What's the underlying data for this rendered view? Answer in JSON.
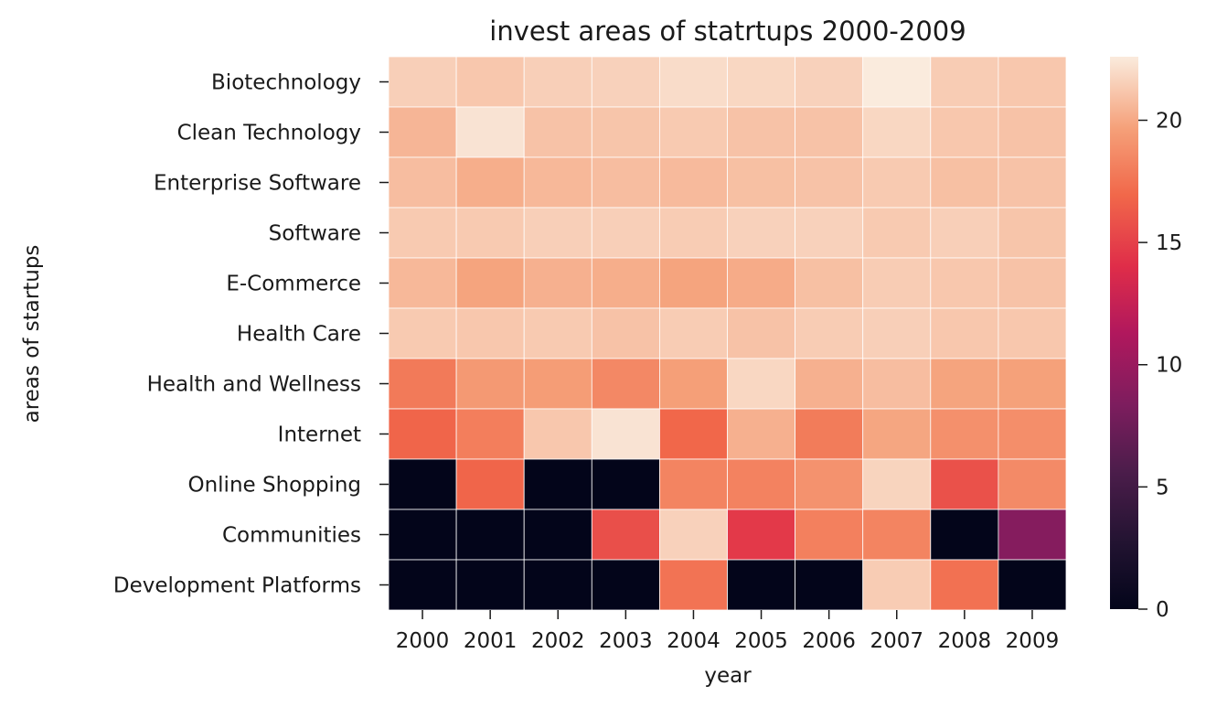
{
  "chart_data": {
    "type": "heatmap",
    "title": "invest areas of statrtups 2000-2009",
    "xlabel": "year",
    "ylabel": "areas of startups",
    "x": [
      "2000",
      "2001",
      "2002",
      "2003",
      "2004",
      "2005",
      "2006",
      "2007",
      "2008",
      "2009"
    ],
    "y": [
      "Biotechnology",
      "Clean Technology",
      "Enterprise Software",
      "Software",
      "E-Commerce",
      "Health Care",
      "Health and Wellness",
      "Internet",
      "Online Shopping",
      "Communities",
      "Development Platforms"
    ],
    "values": [
      [
        21.5,
        21.2,
        21.5,
        21.6,
        22.0,
        21.8,
        21.6,
        22.6,
        21.4,
        21.2
      ],
      [
        20.5,
        22.3,
        21.0,
        21.1,
        21.3,
        21.0,
        21.0,
        21.8,
        21.2,
        21.0
      ],
      [
        20.8,
        20.2,
        20.6,
        20.8,
        20.7,
        20.9,
        21.0,
        21.3,
        20.9,
        21.0
      ],
      [
        21.3,
        21.3,
        21.5,
        21.5,
        21.4,
        21.6,
        21.6,
        21.3,
        21.5,
        21.1
      ],
      [
        20.6,
        19.8,
        20.3,
        20.2,
        19.8,
        20.1,
        20.9,
        21.4,
        21.2,
        21.0
      ],
      [
        21.3,
        21.2,
        21.3,
        21.0,
        21.4,
        21.0,
        21.4,
        21.5,
        21.2,
        21.2
      ],
      [
        17.8,
        19.3,
        19.5,
        18.5,
        19.6,
        21.8,
        20.3,
        20.8,
        19.8,
        19.7
      ],
      [
        16.8,
        18.0,
        21.2,
        22.3,
        16.9,
        20.3,
        17.9,
        19.9,
        18.9,
        18.8
      ],
      [
        0.0,
        16.8,
        0.0,
        0.0,
        18.3,
        18.2,
        19.0,
        21.7,
        15.8,
        18.6
      ],
      [
        0.0,
        0.0,
        0.0,
        15.7,
        21.6,
        14.6,
        18.1,
        18.3,
        0.0,
        8.8
      ],
      [
        0.0,
        0.0,
        0.0,
        0.0,
        17.5,
        0.0,
        0.0,
        21.4,
        17.4,
        0.0
      ]
    ],
    "colorbar": {
      "range": [
        0,
        22.6
      ],
      "ticks": [
        "0",
        "5",
        "10",
        "15",
        "20"
      ],
      "tick_values": [
        0,
        5,
        10,
        15,
        20
      ]
    },
    "colormap": "rocket",
    "grid": false,
    "legend": "colorbar-right"
  }
}
